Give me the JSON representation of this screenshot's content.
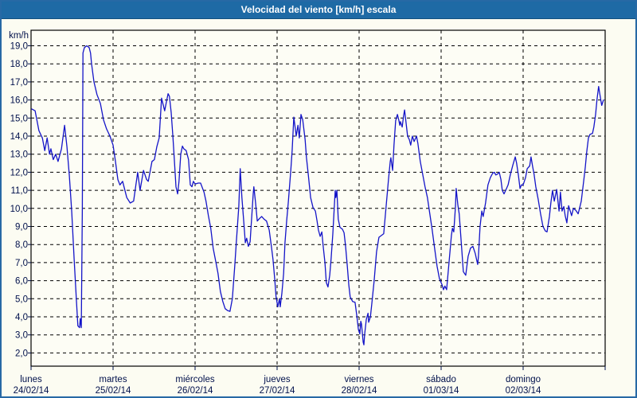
{
  "title": "Velocidad del viento [km/h] escala",
  "colors": {
    "titlebar_bg": "#1E6AA5",
    "titlebar_border": "#11507E",
    "window_border": "#2769A5",
    "window_bg": "#FCFCF2",
    "plot_bg": "#FDFDF5",
    "plot_border": "#000000",
    "grid": "#000000",
    "axis_text": "#00104B",
    "line": "#1414C8"
  },
  "chart_data": {
    "type": "line",
    "title": "Velocidad del viento [km/h] escala",
    "ylabel": "km/h",
    "ylim": [
      2,
      19
    ],
    "ytick_values": [
      19,
      18,
      17,
      16,
      15,
      14,
      13,
      12,
      11,
      10,
      9,
      8,
      7,
      6,
      5,
      4,
      3,
      2
    ],
    "ytick_labels": [
      "19,0",
      "18,0",
      "17,0",
      "16,0",
      "15,0",
      "14,0",
      "13,0",
      "12,0",
      "11,0",
      "10,0",
      "9,0",
      "8,0",
      "7,0",
      "6,0",
      "5,0",
      "4,0",
      "3,0",
      "2,0"
    ],
    "grid": "dashed horizontal every 1 km/h, dashed vertical at each day boundary",
    "legend": "none",
    "x_axis": {
      "unit": "hours",
      "range_hours": [
        0,
        168
      ]
    },
    "days": [
      {
        "name": "lunes",
        "date": "24/02/14"
      },
      {
        "name": "martes",
        "date": "25/02/14"
      },
      {
        "name": "miércoles",
        "date": "26/02/14"
      },
      {
        "name": "jueves",
        "date": "27/02/14"
      },
      {
        "name": "viernes",
        "date": "28/02/14"
      },
      {
        "name": "sábado",
        "date": "01/03/14"
      },
      {
        "name": "domingo",
        "date": "02/03/14"
      }
    ],
    "series": [
      {
        "name": "velocidad del viento",
        "units": "km/h",
        "points": [
          [
            0.2,
            15.5
          ],
          [
            1.2,
            15.4
          ],
          [
            2.3,
            14.3
          ],
          [
            3.3,
            13.9
          ],
          [
            4.0,
            13.2
          ],
          [
            4.7,
            13.9
          ],
          [
            5.4,
            13.0
          ],
          [
            5.8,
            13.3
          ],
          [
            6.5,
            12.7
          ],
          [
            7.2,
            13.0
          ],
          [
            7.9,
            12.6
          ],
          [
            8.9,
            13.3
          ],
          [
            9.8,
            14.6
          ],
          [
            10.5,
            13.4
          ],
          [
            11.2,
            11.8
          ],
          [
            11.9,
            9.8
          ],
          [
            12.6,
            7.2
          ],
          [
            13.3,
            4.8
          ],
          [
            13.7,
            3.5
          ],
          [
            14.2,
            3.4
          ],
          [
            14.4,
            3.9
          ],
          [
            14.7,
            3.4
          ],
          [
            15.0,
            10.0
          ],
          [
            15.2,
            18.6
          ],
          [
            15.6,
            18.9
          ],
          [
            16.3,
            19.0
          ],
          [
            17.0,
            18.9
          ],
          [
            17.4,
            18.6
          ],
          [
            17.7,
            18.0
          ],
          [
            18.4,
            17.0
          ],
          [
            19.3,
            16.3
          ],
          [
            20.3,
            15.8
          ],
          [
            21.2,
            14.9
          ],
          [
            22.1,
            14.4
          ],
          [
            23.1,
            14.0
          ],
          [
            24.0,
            13.5
          ],
          [
            24.7,
            12.6
          ],
          [
            25.4,
            11.6
          ],
          [
            26.0,
            11.3
          ],
          [
            26.8,
            11.5
          ],
          [
            28.0,
            10.6
          ],
          [
            29.0,
            10.3
          ],
          [
            30.0,
            10.4
          ],
          [
            31.2,
            12.0
          ],
          [
            31.9,
            11.0
          ],
          [
            32.9,
            12.1
          ],
          [
            33.8,
            11.6
          ],
          [
            34.3,
            11.5
          ],
          [
            35.4,
            12.6
          ],
          [
            36.1,
            12.7
          ],
          [
            36.8,
            13.4
          ],
          [
            37.5,
            13.9
          ],
          [
            38.2,
            16.1
          ],
          [
            39.1,
            15.4
          ],
          [
            39.6,
            15.9
          ],
          [
            40.1,
            16.35
          ],
          [
            40.5,
            16.2
          ],
          [
            41.0,
            15.3
          ],
          [
            41.5,
            14.0
          ],
          [
            41.9,
            12.8
          ],
          [
            42.4,
            11.2
          ],
          [
            42.9,
            10.8
          ],
          [
            43.3,
            11.5
          ],
          [
            43.8,
            13.0
          ],
          [
            44.3,
            13.45
          ],
          [
            44.7,
            13.3
          ],
          [
            45.4,
            13.2
          ],
          [
            46.1,
            12.7
          ],
          [
            46.6,
            11.3
          ],
          [
            47.1,
            11.2
          ],
          [
            47.5,
            11.5
          ],
          [
            48.0,
            11.35
          ],
          [
            48.9,
            11.4
          ],
          [
            49.6,
            11.4
          ],
          [
            50.6,
            10.9
          ],
          [
            51.2,
            10.4
          ],
          [
            51.9,
            9.6
          ],
          [
            52.6,
            8.9
          ],
          [
            53.3,
            7.8
          ],
          [
            54.0,
            7.1
          ],
          [
            54.7,
            6.4
          ],
          [
            55.4,
            5.4
          ],
          [
            56.1,
            4.85
          ],
          [
            56.8,
            4.45
          ],
          [
            57.5,
            4.35
          ],
          [
            58.2,
            4.3
          ],
          [
            58.9,
            5.0
          ],
          [
            59.6,
            6.8
          ],
          [
            60.1,
            8.2
          ],
          [
            60.8,
            10.1
          ],
          [
            61.2,
            12.2
          ],
          [
            61.7,
            10.6
          ],
          [
            62.2,
            9.4
          ],
          [
            62.7,
            8.1
          ],
          [
            63.1,
            8.35
          ],
          [
            63.6,
            7.9
          ],
          [
            64.1,
            8.15
          ],
          [
            64.5,
            9.3
          ],
          [
            65.0,
            10.8
          ],
          [
            65.2,
            11.2
          ],
          [
            65.7,
            10.3
          ],
          [
            66.2,
            9.3
          ],
          [
            66.9,
            9.45
          ],
          [
            67.5,
            9.55
          ],
          [
            68.2,
            9.4
          ],
          [
            68.9,
            9.3
          ],
          [
            69.7,
            8.8
          ],
          [
            70.4,
            7.8
          ],
          [
            70.8,
            7.2
          ],
          [
            71.3,
            6.1
          ],
          [
            71.7,
            5.1
          ],
          [
            72.2,
            4.55
          ],
          [
            72.7,
            5.0
          ],
          [
            72.9,
            4.55
          ],
          [
            73.4,
            5.3
          ],
          [
            73.9,
            6.4
          ],
          [
            74.3,
            8.1
          ],
          [
            74.8,
            9.3
          ],
          [
            75.3,
            10.4
          ],
          [
            76.0,
            12.1
          ],
          [
            76.4,
            13.2
          ],
          [
            76.9,
            15.05
          ],
          [
            77.4,
            14.3
          ],
          [
            77.6,
            14.0
          ],
          [
            78.1,
            14.6
          ],
          [
            78.5,
            13.9
          ],
          [
            79.0,
            15.2
          ],
          [
            79.5,
            14.9
          ],
          [
            80.2,
            13.8
          ],
          [
            80.6,
            12.8
          ],
          [
            81.1,
            11.9
          ],
          [
            81.8,
            10.6
          ],
          [
            82.5,
            10.05
          ],
          [
            83.2,
            9.85
          ],
          [
            83.7,
            9.3
          ],
          [
            84.1,
            8.8
          ],
          [
            84.6,
            8.45
          ],
          [
            85.1,
            8.7
          ],
          [
            85.5,
            7.9
          ],
          [
            86.0,
            7.0
          ],
          [
            86.4,
            5.9
          ],
          [
            86.9,
            5.65
          ],
          [
            87.4,
            6.3
          ],
          [
            87.8,
            7.2
          ],
          [
            88.3,
            8.6
          ],
          [
            88.8,
            10.3
          ],
          [
            89.0,
            11.0
          ],
          [
            89.2,
            10.6
          ],
          [
            89.5,
            11.0
          ],
          [
            89.9,
            9.4
          ],
          [
            90.4,
            8.95
          ],
          [
            91.1,
            8.85
          ],
          [
            91.6,
            8.65
          ],
          [
            92.0,
            8.0
          ],
          [
            92.5,
            6.9
          ],
          [
            93.0,
            5.75
          ],
          [
            93.4,
            5.1
          ],
          [
            94.1,
            4.85
          ],
          [
            94.8,
            4.8
          ],
          [
            95.3,
            4.1
          ],
          [
            95.8,
            3.3
          ],
          [
            96.2,
            3.05
          ],
          [
            96.5,
            3.75
          ],
          [
            96.7,
            3.6
          ],
          [
            97.2,
            2.6
          ],
          [
            97.4,
            2.45
          ],
          [
            97.6,
            3.0
          ],
          [
            98.1,
            3.85
          ],
          [
            98.6,
            4.2
          ],
          [
            98.8,
            3.7
          ],
          [
            99.3,
            4.0
          ],
          [
            99.7,
            4.7
          ],
          [
            100.4,
            6.0
          ],
          [
            101.1,
            7.6
          ],
          [
            101.8,
            8.4
          ],
          [
            102.5,
            8.5
          ],
          [
            103.2,
            8.6
          ],
          [
            103.9,
            10.1
          ],
          [
            104.6,
            11.6
          ],
          [
            105.1,
            12.6
          ],
          [
            105.3,
            12.8
          ],
          [
            105.8,
            12.1
          ],
          [
            106.2,
            13.5
          ],
          [
            106.7,
            14.85
          ],
          [
            107.2,
            15.2
          ],
          [
            107.6,
            14.9
          ],
          [
            107.9,
            14.6
          ],
          [
            108.1,
            14.8
          ],
          [
            108.6,
            14.5
          ],
          [
            109.0,
            15.1
          ],
          [
            109.3,
            15.45
          ],
          [
            109.7,
            14.8
          ],
          [
            110.2,
            14.0
          ],
          [
            110.7,
            13.8
          ],
          [
            111.1,
            13.5
          ],
          [
            111.6,
            14.0
          ],
          [
            112.1,
            13.7
          ],
          [
            112.8,
            14.0
          ],
          [
            113.2,
            13.6
          ],
          [
            113.9,
            12.6
          ],
          [
            114.6,
            11.9
          ],
          [
            115.3,
            11.2
          ],
          [
            116.0,
            10.6
          ],
          [
            116.7,
            9.7
          ],
          [
            117.4,
            8.8
          ],
          [
            118.1,
            7.8
          ],
          [
            118.8,
            6.8
          ],
          [
            119.5,
            6.1
          ],
          [
            120.2,
            5.8
          ],
          [
            120.7,
            5.5
          ],
          [
            121.1,
            5.7
          ],
          [
            121.6,
            5.5
          ],
          [
            122.3,
            7.0
          ],
          [
            123.0,
            8.5
          ],
          [
            123.3,
            8.9
          ],
          [
            123.7,
            8.7
          ],
          [
            124.2,
            10.1
          ],
          [
            124.4,
            11.1
          ],
          [
            124.9,
            10.2
          ],
          [
            125.3,
            9.7
          ],
          [
            126.0,
            7.8
          ],
          [
            126.5,
            6.5
          ],
          [
            127.2,
            6.3
          ],
          [
            127.9,
            7.35
          ],
          [
            128.6,
            7.8
          ],
          [
            129.3,
            7.9
          ],
          [
            130.0,
            7.5
          ],
          [
            130.7,
            6.9
          ],
          [
            130.9,
            7.3
          ],
          [
            131.4,
            9.0
          ],
          [
            131.9,
            9.85
          ],
          [
            132.3,
            9.55
          ],
          [
            133.0,
            10.3
          ],
          [
            133.7,
            11.3
          ],
          [
            134.4,
            11.7
          ],
          [
            135.1,
            11.95
          ],
          [
            135.6,
            12.0
          ],
          [
            136.0,
            11.85
          ],
          [
            136.5,
            11.9
          ],
          [
            137.0,
            12.0
          ],
          [
            137.5,
            11.6
          ],
          [
            137.9,
            11.0
          ],
          [
            138.4,
            10.8
          ],
          [
            138.9,
            11.0
          ],
          [
            139.6,
            11.3
          ],
          [
            140.3,
            11.9
          ],
          [
            141.0,
            12.4
          ],
          [
            141.7,
            12.85
          ],
          [
            142.1,
            12.5
          ],
          [
            142.6,
            11.85
          ],
          [
            143.1,
            11.1
          ],
          [
            143.5,
            11.3
          ],
          [
            144.0,
            11.3
          ],
          [
            144.7,
            11.7
          ],
          [
            145.2,
            12.2
          ],
          [
            145.9,
            12.35
          ],
          [
            146.3,
            12.85
          ],
          [
            146.8,
            12.3
          ],
          [
            147.2,
            11.9
          ],
          [
            147.7,
            11.2
          ],
          [
            148.4,
            10.5
          ],
          [
            149.1,
            9.7
          ],
          [
            149.8,
            9.0
          ],
          [
            150.5,
            8.75
          ],
          [
            151.0,
            8.7
          ],
          [
            151.7,
            9.55
          ],
          [
            152.1,
            10.3
          ],
          [
            152.6,
            11.0
          ],
          [
            153.1,
            10.4
          ],
          [
            153.8,
            11.05
          ],
          [
            154.5,
            9.85
          ],
          [
            154.9,
            10.9
          ],
          [
            155.4,
            9.85
          ],
          [
            155.9,
            10.1
          ],
          [
            156.3,
            9.6
          ],
          [
            156.8,
            9.2
          ],
          [
            157.3,
            10.15
          ],
          [
            157.7,
            9.9
          ],
          [
            158.2,
            9.6
          ],
          [
            158.7,
            10.0
          ],
          [
            159.4,
            9.9
          ],
          [
            160.1,
            9.7
          ],
          [
            160.5,
            10.0
          ],
          [
            161.0,
            10.4
          ],
          [
            161.7,
            11.5
          ],
          [
            162.2,
            12.3
          ],
          [
            162.6,
            13.1
          ],
          [
            163.1,
            13.9
          ],
          [
            163.6,
            14.1
          ],
          [
            164.3,
            14.15
          ],
          [
            164.7,
            14.5
          ],
          [
            165.2,
            15.2
          ],
          [
            165.6,
            16.0
          ],
          [
            166.1,
            16.75
          ],
          [
            166.3,
            16.5
          ],
          [
            166.8,
            15.9
          ],
          [
            167.0,
            15.7
          ],
          [
            167.5,
            16.0
          ]
        ]
      }
    ]
  }
}
